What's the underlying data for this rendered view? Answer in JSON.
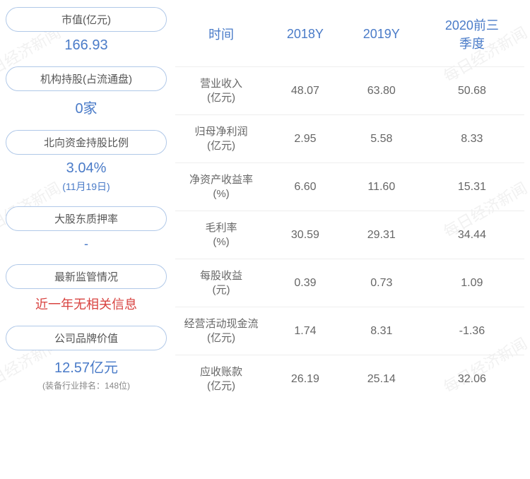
{
  "watermark_text": "每日经济新闻",
  "left": {
    "items": [
      {
        "label": "市值(亿元)",
        "value": "166.93",
        "cls": ""
      },
      {
        "label": "机构持股(占流通盘)",
        "value": "0家",
        "cls": ""
      },
      {
        "label": "北向资金持股比例",
        "value": "3.04%",
        "sub": "(11月19日)",
        "cls": ""
      },
      {
        "label": "大股东质押率",
        "value": "-",
        "cls": "dash"
      },
      {
        "label": "最新监管情况",
        "value": "近一年无相关信息",
        "cls": "red"
      },
      {
        "label": "公司品牌价值",
        "value": "12.57亿元",
        "note": "(装备行业排名：148位)",
        "cls": ""
      }
    ]
  },
  "table": {
    "headers": [
      "时间",
      "2018Y",
      "2019Y",
      "2020前三\n季度"
    ],
    "rows": [
      [
        "营业收入\n(亿元)",
        "48.07",
        "63.80",
        "50.68"
      ],
      [
        "归母净利润\n(亿元)",
        "2.95",
        "5.58",
        "8.33"
      ],
      [
        "净资产收益率\n(%)",
        "6.60",
        "11.60",
        "15.31"
      ],
      [
        "毛利率\n(%)",
        "30.59",
        "29.31",
        "34.44"
      ],
      [
        "每股收益\n(元)",
        "0.39",
        "0.73",
        "1.09"
      ],
      [
        "经营活动现金流\n(亿元)",
        "1.74",
        "8.31",
        "-1.36"
      ],
      [
        "应收账款\n(亿元)",
        "26.19",
        "25.14",
        "32.06"
      ]
    ]
  }
}
